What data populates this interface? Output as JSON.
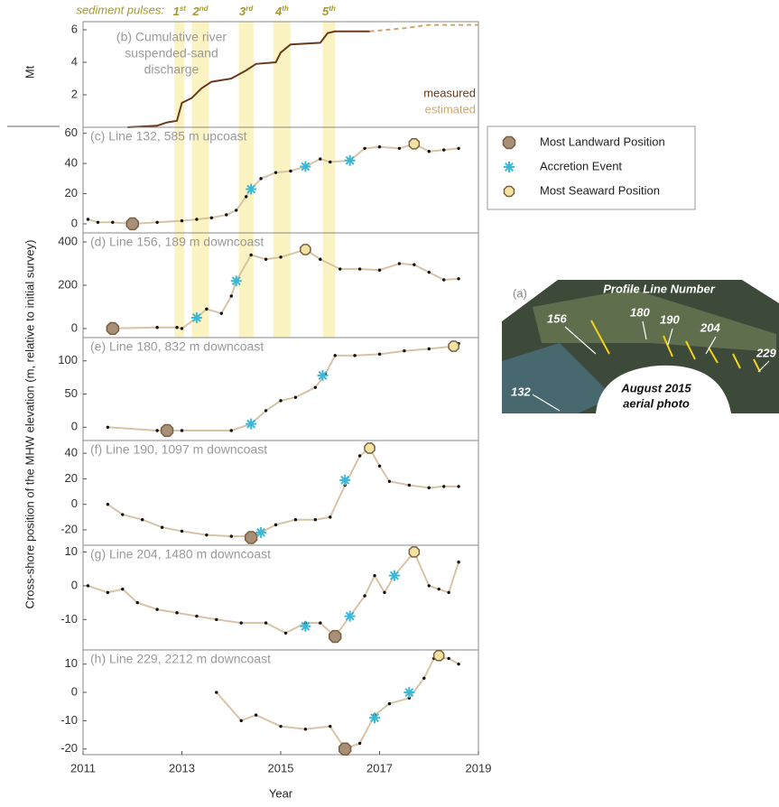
{
  "chart_data": [
    {
      "type": "line",
      "ylabel": "Mt",
      "annotation_lines": [
        "(b) Cumulative river",
        "suspended-sand",
        "discharge"
      ],
      "ylim": [
        0,
        6.5
      ],
      "yticks": [
        2,
        4,
        6
      ],
      "pulses_label": "sediment pulses:",
      "pulses": [
        {
          "number": "1",
          "suffix": "st",
          "range": [
            2012.85,
            2013.05
          ]
        },
        {
          "number": "2",
          "suffix": "nd",
          "range": [
            2013.2,
            2013.55
          ]
        },
        {
          "number": "3",
          "suffix": "rd",
          "range": [
            2014.15,
            2014.45
          ]
        },
        {
          "number": "4",
          "suffix": "th",
          "range": [
            2014.85,
            2015.2
          ]
        },
        {
          "number": "5",
          "suffix": "th",
          "range": [
            2015.85,
            2016.1
          ]
        }
      ],
      "series": [
        {
          "name": "measured",
          "color": "#6b3a1c",
          "dashed": false,
          "x": [
            2011.9,
            2012.5,
            2012.7,
            2012.9,
            2013.0,
            2013.2,
            2013.4,
            2013.6,
            2014.0,
            2014.3,
            2014.5,
            2014.9,
            2015.0,
            2015.2,
            2015.8,
            2015.95,
            2016.1,
            2016.8
          ],
          "values": [
            0,
            0.1,
            0.3,
            0.4,
            1.5,
            1.8,
            2.4,
            2.8,
            3.0,
            3.5,
            3.9,
            4.0,
            4.6,
            5.1,
            5.2,
            5.8,
            5.9,
            5.9
          ]
        },
        {
          "name": "estimated",
          "color": "#d1a56a",
          "dashed": true,
          "x": [
            2016.8,
            2017.5,
            2018.0,
            2019.0
          ],
          "values": [
            5.9,
            6.1,
            6.3,
            6.3
          ]
        }
      ]
    },
    {
      "type": "scatter",
      "title": "(c) Line 132, 585 m upcoast",
      "ylim": [
        -6,
        64
      ],
      "yticks": [
        0,
        20,
        40,
        60
      ],
      "x": [
        2011.1,
        2011.3,
        2011.6,
        2012.0,
        2012.5,
        2013.0,
        2013.3,
        2013.6,
        2013.9,
        2014.1,
        2014.3,
        2014.4,
        2014.6,
        2014.9,
        2015.2,
        2015.5,
        2015.8,
        2016.0,
        2016.4,
        2016.7,
        2017.0,
        2017.4,
        2017.7,
        2018.0,
        2018.3,
        2018.6
      ],
      "values": [
        3,
        1,
        1,
        0,
        1,
        2,
        3,
        4,
        6,
        9,
        18,
        23,
        30,
        34,
        35,
        38,
        43,
        41,
        42,
        50,
        51,
        50,
        53,
        48,
        49,
        50
      ],
      "landward": {
        "x": [
          2012.0
        ],
        "values": [
          0
        ]
      },
      "accretion": {
        "x": [
          2014.4,
          2015.5,
          2016.4
        ],
        "values": [
          23,
          38,
          42
        ]
      },
      "seaward": {
        "x": [
          2017.7
        ],
        "values": [
          53
        ]
      }
    },
    {
      "type": "scatter",
      "title": "(d) Line 156, 189 m downcoast",
      "ylim": [
        -42,
        442
      ],
      "yticks": [
        0,
        200,
        400
      ],
      "x": [
        2011.5,
        2012.5,
        2012.9,
        2013.0,
        2013.3,
        2013.5,
        2013.8,
        2014.0,
        2014.1,
        2014.4,
        2014.7,
        2015.0,
        2015.5,
        2015.8,
        2016.2,
        2016.6,
        2017.0,
        2017.4,
        2017.7,
        2018.0,
        2018.3,
        2018.6
      ],
      "values": [
        0,
        5,
        5,
        0,
        50,
        90,
        70,
        150,
        220,
        340,
        320,
        330,
        365,
        320,
        275,
        275,
        270,
        300,
        295,
        260,
        225,
        230
      ],
      "landward": {
        "x": [
          2011.6
        ],
        "values": [
          0
        ]
      },
      "accretion": {
        "x": [
          2013.3,
          2014.1
        ],
        "values": [
          50,
          220
        ]
      },
      "seaward": {
        "x": [
          2015.5
        ],
        "values": [
          365
        ]
      }
    },
    {
      "type": "scatter",
      "title": "(e) Line 180, 832 m downcoast",
      "ylim": [
        -20,
        135
      ],
      "yticks": [
        0,
        50,
        100
      ],
      "x": [
        2011.5,
        2012.5,
        2013.0,
        2014.0,
        2014.4,
        2014.7,
        2015.0,
        2015.3,
        2015.7,
        2015.9,
        2016.1,
        2016.5,
        2017.0,
        2017.5,
        2018.0,
        2018.5,
        2018.6
      ],
      "values": [
        0,
        -5,
        -5,
        -5,
        5,
        25,
        40,
        45,
        60,
        80,
        108,
        108,
        110,
        115,
        118,
        122,
        126
      ],
      "landward": {
        "x": [
          2012.7
        ],
        "values": [
          -5
        ]
      },
      "accretion": {
        "x": [
          2014.4,
          2015.85
        ],
        "values": [
          5,
          78
        ]
      },
      "seaward": {
        "x": [
          2018.5
        ],
        "values": [
          122
        ]
      }
    },
    {
      "type": "scatter",
      "title": "(f) Line 190, 1097 m downcoast",
      "ylim": [
        -32,
        50
      ],
      "yticks": [
        -20,
        0,
        20,
        40
      ],
      "x": [
        2011.5,
        2011.8,
        2012.2,
        2012.6,
        2013.0,
        2013.5,
        2014.0,
        2014.4,
        2014.6,
        2014.9,
        2015.3,
        2015.7,
        2016.0,
        2016.3,
        2016.6,
        2016.8,
        2017.0,
        2017.2,
        2017.6,
        2018.0,
        2018.3,
        2018.6
      ],
      "values": [
        0,
        -8,
        -12,
        -18,
        -21,
        -24,
        -25,
        -25,
        -22,
        -16,
        -12,
        -12,
        -10,
        15,
        38,
        44,
        30,
        18,
        15,
        13,
        14,
        14
      ],
      "landward": {
        "x": [
          2014.4
        ],
        "values": [
          -26
        ]
      },
      "accretion": {
        "x": [
          2014.6,
          2016.3
        ],
        "values": [
          -22,
          19
        ]
      },
      "seaward": {
        "x": [
          2016.8
        ],
        "values": [
          44
        ]
      }
    },
    {
      "type": "scatter",
      "title": "(g) Line 204, 1480 m downcoast",
      "ylim": [
        -19,
        12
      ],
      "yticks": [
        -10,
        0,
        10
      ],
      "x": [
        2011.1,
        2011.5,
        2011.8,
        2012.1,
        2012.5,
        2012.9,
        2013.3,
        2013.7,
        2014.2,
        2014.7,
        2015.1,
        2015.5,
        2015.8,
        2016.1,
        2016.4,
        2016.7,
        2016.9,
        2017.1,
        2017.3,
        2017.7,
        2018.0,
        2018.2,
        2018.4,
        2018.6
      ],
      "values": [
        0,
        -2,
        -1,
        -5,
        -7,
        -8,
        -9,
        -10,
        -11,
        -11,
        -14,
        -11,
        -11,
        -15,
        -9,
        -3,
        3,
        -2,
        3,
        10,
        0,
        -1,
        -2,
        7
      ],
      "landward": {
        "x": [
          2016.1
        ],
        "values": [
          -15
        ]
      },
      "accretion": {
        "x": [
          2015.5,
          2016.4,
          2017.3
        ],
        "values": [
          -12,
          -9,
          3
        ]
      },
      "seaward": {
        "x": [
          2017.7
        ],
        "values": [
          10
        ]
      }
    },
    {
      "type": "scatter",
      "title": "(h) Line 229, 2212 m downcoast",
      "ylim": [
        -22,
        15
      ],
      "yticks": [
        -20,
        -10,
        0,
        10
      ],
      "x": [
        2013.7,
        2014.2,
        2014.5,
        2015.0,
        2015.5,
        2016.0,
        2016.3,
        2016.6,
        2016.9,
        2017.2,
        2017.6,
        2017.9,
        2018.1,
        2018.4,
        2018.6
      ],
      "values": [
        0,
        -10,
        -8,
        -12,
        -13,
        -12,
        -20,
        -18,
        -8,
        -4,
        -2,
        5,
        12,
        12,
        10
      ],
      "landward": {
        "x": [
          2016.3
        ],
        "values": [
          -20
        ]
      },
      "accretion": {
        "x": [
          2016.9,
          2017.6
        ],
        "values": [
          -9,
          0
        ]
      },
      "seaward": {
        "x": [
          2018.2
        ],
        "values": [
          13
        ]
      }
    }
  ],
  "x_axis": {
    "label": "Year",
    "xlim": [
      2011,
      2019
    ],
    "xticks": [
      2011,
      2013,
      2015,
      2017,
      2019
    ]
  },
  "ylabel": "Cross-shore position of the MHW elevation (m, relative to initial survey)",
  "legend": {
    "landward": "Most Landward Position",
    "accretion": "Accretion Event",
    "seaward": "Most Seaward Position"
  },
  "inset": {
    "panel": "(a)",
    "title": "Profile Line Number",
    "lines": [
      "156",
      "180",
      "190",
      "204",
      "229",
      "132"
    ],
    "caption": [
      "August 2015",
      "aerial photo"
    ]
  }
}
